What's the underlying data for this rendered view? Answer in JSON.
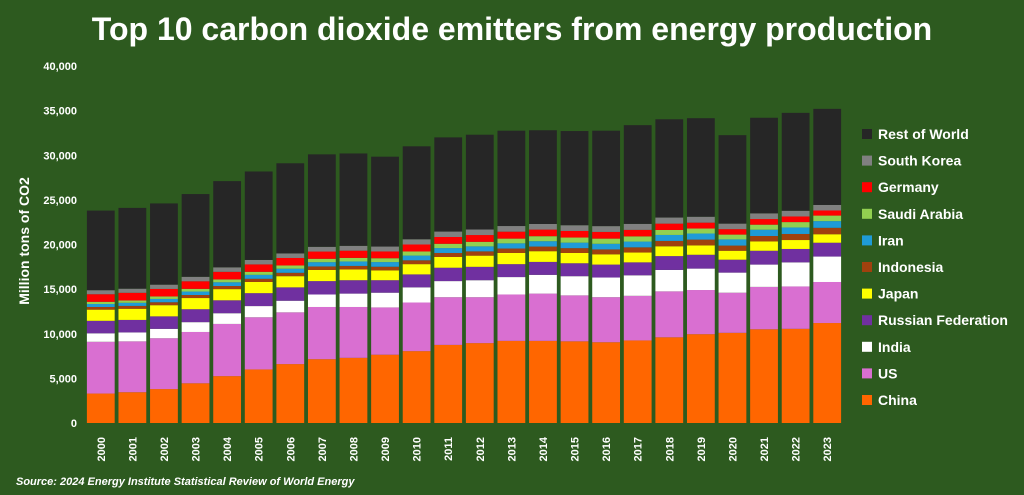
{
  "chart_data": {
    "type": "bar",
    "stacked": true,
    "title": "Top 10 carbon dioxide emitters from energy production",
    "ylabel": "Million tons of CO2",
    "xlabel": "",
    "ylim": [
      0,
      40000
    ],
    "yticks": [
      0,
      5000,
      10000,
      15000,
      20000,
      25000,
      30000,
      35000,
      40000
    ],
    "ytick_labels": [
      "0",
      "5,000",
      "10,000",
      "15,000",
      "20,000",
      "25,000",
      "30,000",
      "35,000",
      "40,000"
    ],
    "categories": [
      "2000",
      "2001",
      "2002",
      "2003",
      "2004",
      "2005",
      "2006",
      "2007",
      "2008",
      "2009",
      "2010",
      "2011",
      "2012",
      "2013",
      "2014",
      "2015",
      "2016",
      "2017",
      "2018",
      "2019",
      "2020",
      "2021",
      "2022",
      "2023"
    ],
    "series": [
      {
        "name": "China",
        "color": "#ff6600",
        "values": [
          3300,
          3450,
          3800,
          4450,
          5250,
          6000,
          6600,
          7150,
          7300,
          7650,
          8050,
          8750,
          8950,
          9200,
          9200,
          9150,
          9050,
          9250,
          9600,
          9950,
          10100,
          10500,
          10550,
          11200
        ]
      },
      {
        "name": "US",
        "color": "#d96fd1",
        "values": [
          5800,
          5700,
          5700,
          5750,
          5850,
          5850,
          5800,
          5850,
          5700,
          5300,
          5450,
          5350,
          5150,
          5200,
          5300,
          5150,
          5050,
          5000,
          5150,
          4950,
          4500,
          4750,
          4750,
          4600
        ]
      },
      {
        "name": "India",
        "color": "#ffffff",
        "values": [
          950,
          1000,
          1050,
          1100,
          1200,
          1250,
          1300,
          1400,
          1500,
          1650,
          1700,
          1800,
          1900,
          1950,
          2100,
          2150,
          2200,
          2300,
          2400,
          2400,
          2250,
          2500,
          2700,
          2850
        ]
      },
      {
        "name": "Russian Federation",
        "color": "#7030a0",
        "values": [
          1400,
          1400,
          1400,
          1450,
          1450,
          1450,
          1500,
          1500,
          1500,
          1400,
          1450,
          1500,
          1500,
          1450,
          1450,
          1450,
          1450,
          1450,
          1550,
          1550,
          1450,
          1550,
          1500,
          1550
        ]
      },
      {
        "name": "Japan",
        "color": "#ffff00",
        "values": [
          1250,
          1250,
          1250,
          1250,
          1250,
          1250,
          1250,
          1250,
          1200,
          1100,
          1150,
          1200,
          1250,
          1250,
          1200,
          1150,
          1150,
          1100,
          1100,
          1050,
          1000,
          1050,
          1000,
          950
        ]
      },
      {
        "name": "Indonesia",
        "color": "#a0410e",
        "values": [
          300,
          320,
          330,
          340,
          350,
          360,
          380,
          390,
          400,
          410,
          430,
          450,
          480,
          500,
          520,
          540,
          550,
          580,
          600,
          650,
          580,
          600,
          680,
          720
        ]
      },
      {
        "name": "Iran",
        "color": "#1f9bd7",
        "values": [
          330,
          350,
          370,
          390,
          420,
          440,
          460,
          480,
          500,
          520,
          530,
          550,
          560,
          580,
          600,
          620,
          630,
          650,
          670,
          680,
          690,
          710,
          730,
          750
        ]
      },
      {
        "name": "Saudi Arabia",
        "color": "#92d050",
        "values": [
          250,
          260,
          280,
          300,
          320,
          340,
          360,
          380,
          400,
          430,
          460,
          480,
          510,
          530,
          560,
          570,
          580,
          580,
          560,
          560,
          540,
          560,
          600,
          620
        ]
      },
      {
        "name": "Germany",
        "color": "#ff0000",
        "values": [
          850,
          860,
          840,
          850,
          850,
          830,
          840,
          810,
          810,
          760,
          780,
          760,
          760,
          780,
          740,
          740,
          750,
          730,
          710,
          660,
          610,
          630,
          630,
          570
        ]
      },
      {
        "name": "South Korea",
        "color": "#808080",
        "values": [
          450,
          460,
          480,
          500,
          500,
          500,
          510,
          530,
          540,
          550,
          590,
          610,
          620,
          630,
          630,
          640,
          650,
          670,
          680,
          660,
          620,
          640,
          640,
          620
        ]
      },
      {
        "name": "Rest of World",
        "color": "#262626",
        "values": [
          8920,
          9050,
          9100,
          9270,
          9660,
          9910,
          10100,
          10360,
          10350,
          10070,
          10410,
          10550,
          10620,
          10680,
          10500,
          10550,
          10690,
          11060,
          11010,
          11040,
          9910,
          10710,
          10970,
          10770
        ]
      }
    ],
    "legend_order": [
      "Rest of World",
      "South Korea",
      "Germany",
      "Saudi Arabia",
      "Iran",
      "Indonesia",
      "Japan",
      "Russian Federation",
      "India",
      "US",
      "China"
    ],
    "legend_position": "right",
    "grid": false
  },
  "source": "Source: 2024 Energy Institute Statistical Review of World Energy"
}
